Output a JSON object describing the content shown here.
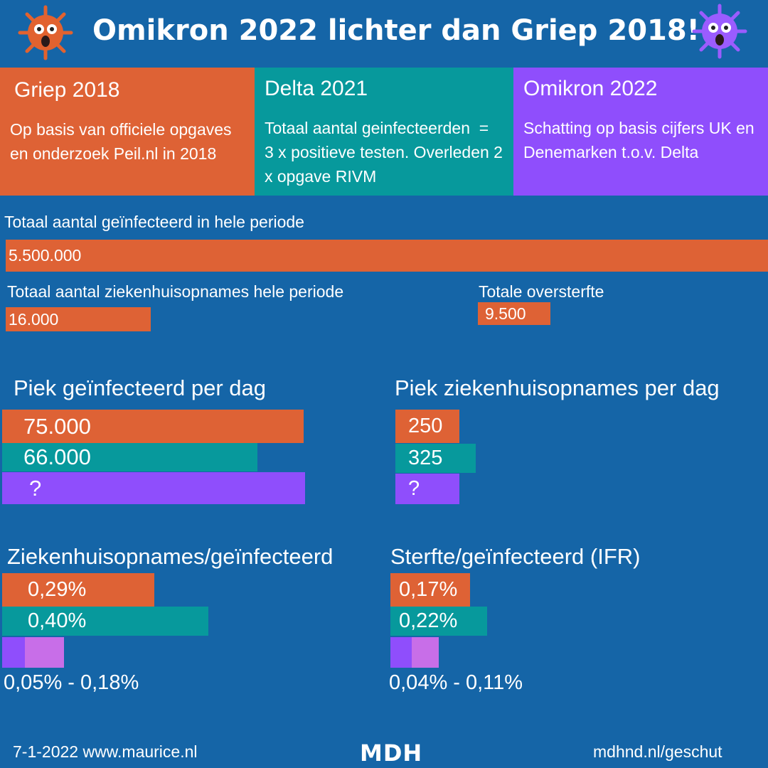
{
  "header": {
    "title": "Omikron 2022 lichter dan Griep 2018!"
  },
  "colors": {
    "background": "#1565a7",
    "griep": "#de6235",
    "delta": "#07999c",
    "omikron": "#8f4efc",
    "omikron_range": "#c86ee8"
  },
  "cards": [
    {
      "title": "Griep 2018",
      "body": "Op basis van officiele opgaves en onderzoek Peil.nl in 2018"
    },
    {
      "title": "Delta 2021",
      "body": "Totaal aantal geinfecteerden  =  3 x positieve testen. Overleden 2 x opgave RIVM"
    },
    {
      "title": "Omikron 2022",
      "body": "Schatting op basis cijfers UK en Denemarken t.o.v. Delta"
    }
  ],
  "chart_data": [
    {
      "type": "bar",
      "title": "Totaal aantal geïnfecteerd in hele periode",
      "series": [
        {
          "name": "Griep 2018",
          "values": [
            5500000
          ]
        }
      ],
      "data_labels": [
        "5.500.000"
      ]
    },
    {
      "type": "bar",
      "title": "Totaal aantal ziekenhuisopnames hele periode",
      "series": [
        {
          "name": "Griep 2018",
          "values": [
            16000
          ]
        }
      ],
      "data_labels": [
        "16.000"
      ]
    },
    {
      "type": "bar",
      "title": "Totale oversterfte",
      "series": [
        {
          "name": "Griep 2018",
          "values": [
            9500
          ]
        }
      ],
      "data_labels": [
        "9.500"
      ]
    },
    {
      "type": "bar",
      "title": "Piek geïnfecteerd per dag",
      "series": [
        {
          "name": "Griep 2018",
          "values": [
            75000
          ]
        },
        {
          "name": "Delta 2021",
          "values": [
            66000
          ]
        },
        {
          "name": "Omikron 2022",
          "values": [
            null
          ]
        }
      ],
      "data_labels": [
        "75.000",
        "66.000",
        "?"
      ]
    },
    {
      "type": "bar",
      "title": "Piek ziekenhuisopnames per dag",
      "series": [
        {
          "name": "Griep 2018",
          "values": [
            250
          ]
        },
        {
          "name": "Delta 2021",
          "values": [
            325
          ]
        },
        {
          "name": "Omikron 2022",
          "values": [
            null
          ]
        }
      ],
      "data_labels": [
        "250",
        "325",
        "?"
      ]
    },
    {
      "type": "bar",
      "title": "Ziekenhuisopnames/geïnfecteerd",
      "series": [
        {
          "name": "Griep 2018",
          "values": [
            0.29
          ]
        },
        {
          "name": "Delta 2021",
          "values": [
            0.4
          ]
        },
        {
          "name": "Omikron 2022",
          "values": [
            [
              0.05,
              0.18
            ]
          ]
        }
      ],
      "data_labels": [
        "0,29%",
        "0,40%",
        "0,05% - 0,18%"
      ]
    },
    {
      "type": "bar",
      "title": "Sterfte/geïnfecteerd (IFR)",
      "series": [
        {
          "name": "Griep 2018",
          "values": [
            0.17
          ]
        },
        {
          "name": "Delta 2021",
          "values": [
            0.22
          ]
        },
        {
          "name": "Omikron 2022",
          "values": [
            [
              0.04,
              0.11
            ]
          ]
        }
      ],
      "data_labels": [
        "0,17%",
        "0,22%",
        "0,04% - 0,11%"
      ]
    }
  ],
  "footer": {
    "left": "7-1-2022  www.maurice.nl",
    "logo": "MDH",
    "right": "mdhnd.nl/geschut"
  }
}
